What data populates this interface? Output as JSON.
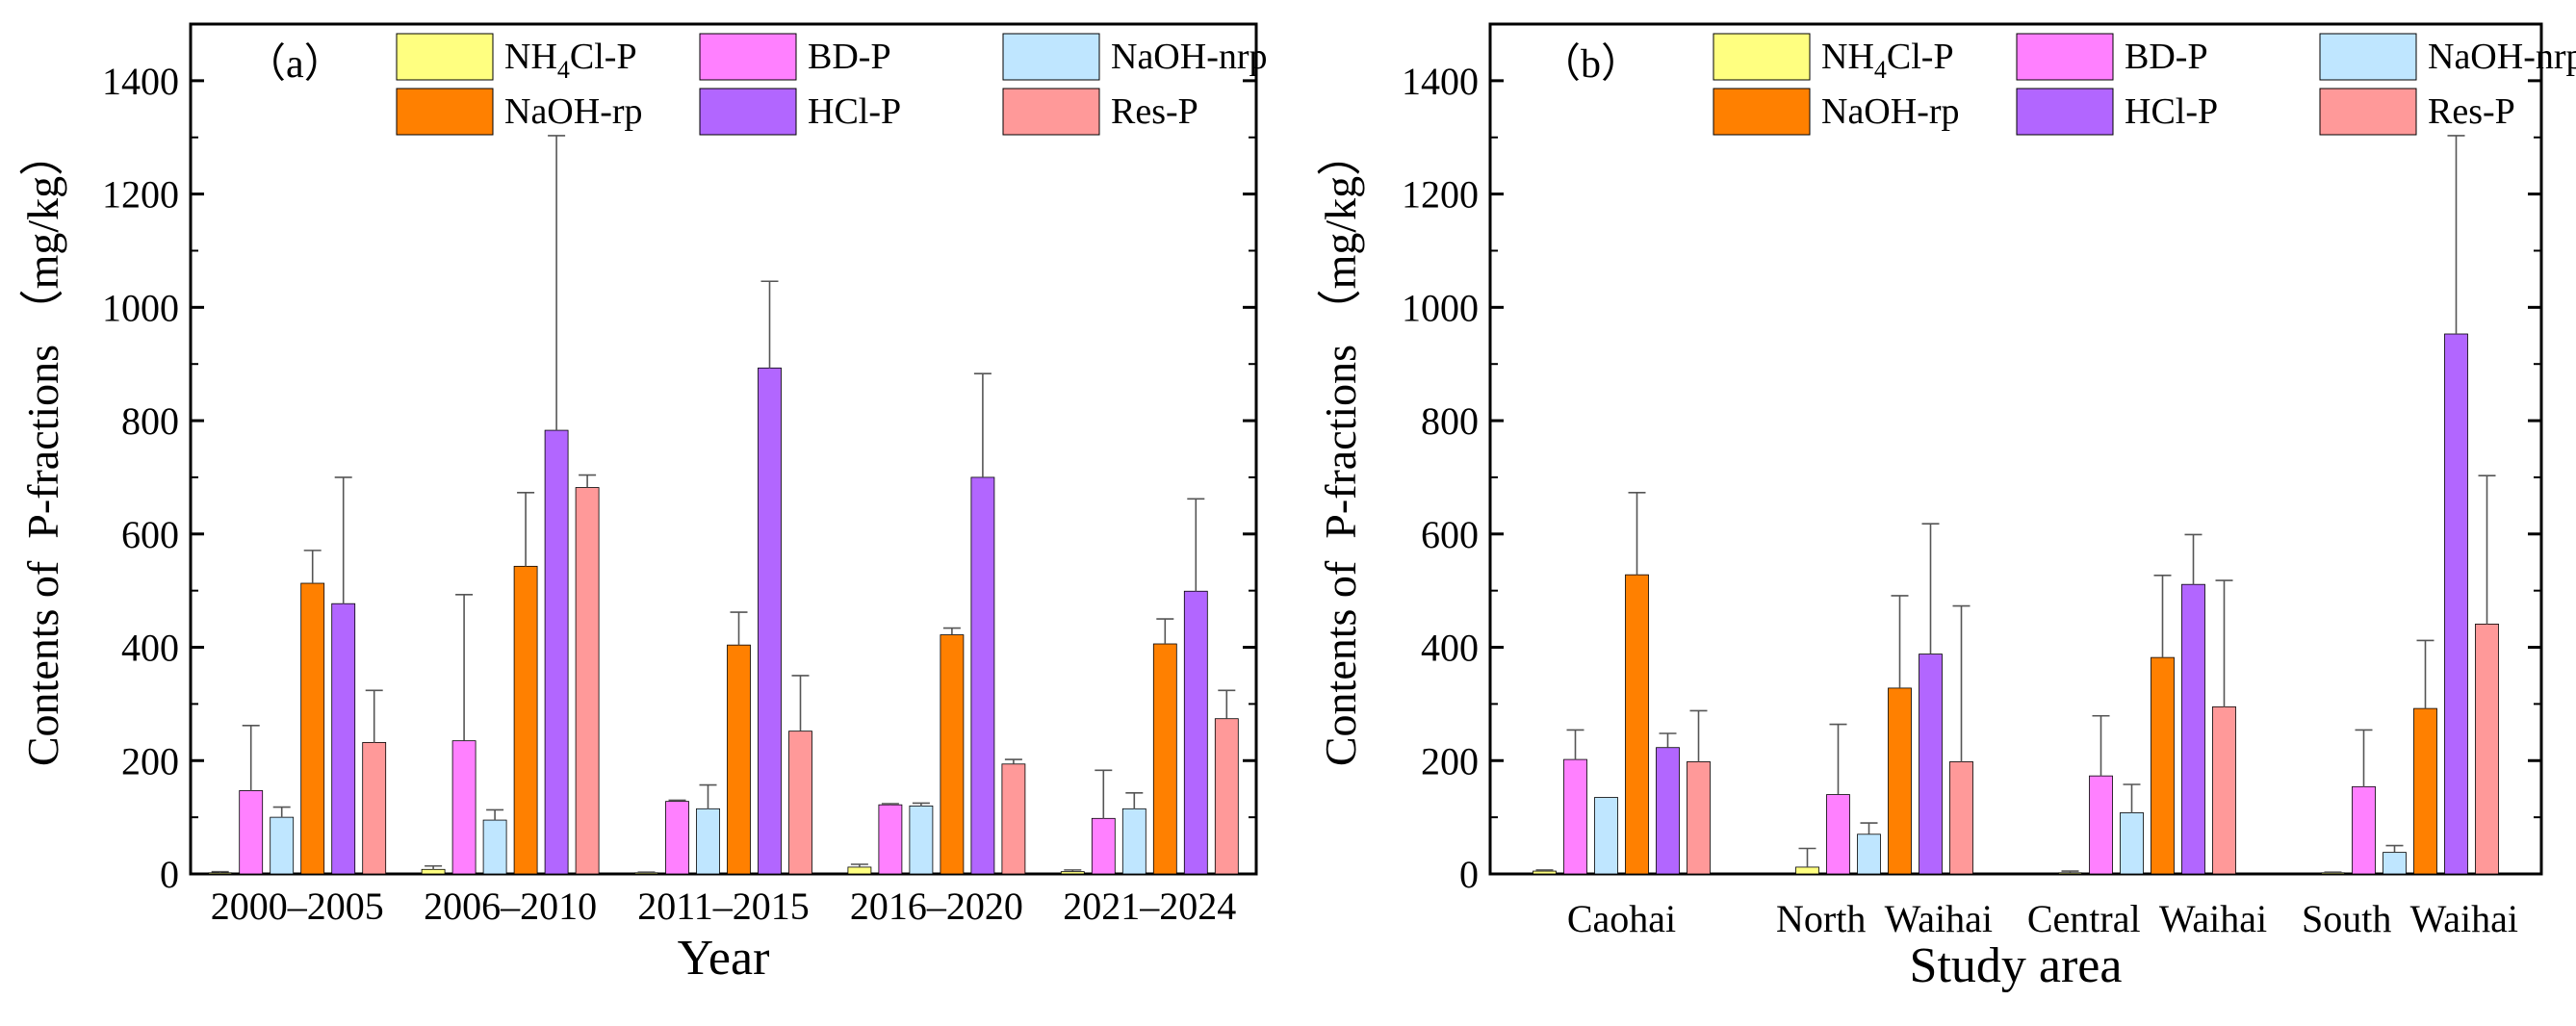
{
  "chart_data": [
    {
      "type": "bar",
      "panel_label": "（a）",
      "xlabel": "Year",
      "ylabel": "Contents of  P-fractions （mg/kg）",
      "ylim": [
        0,
        1500
      ],
      "yticks": [
        0,
        200,
        400,
        600,
        800,
        1000,
        1200,
        1400
      ],
      "legend": {
        "placement": "top",
        "columns": 3
      },
      "categories": [
        "2000–2005",
        "2006–2010",
        "2011–2015",
        "2016–2020",
        "2021–2024"
      ],
      "series": [
        {
          "name": "NH4Cl-P",
          "label_main": "NH",
          "label_sub": "4",
          "label_rest": "Cl-P",
          "color": "#FFFF80",
          "values": [
            2,
            8,
            2,
            12,
            4
          ],
          "errors": [
            2,
            6,
            1,
            5,
            3
          ]
        },
        {
          "name": "BD-P",
          "label_main": "BD-P",
          "color": "#FF80FF",
          "values": [
            147,
            235,
            128,
            122,
            98
          ],
          "errors": [
            115,
            258,
            2,
            2,
            85
          ]
        },
        {
          "name": "NaOH-nrp",
          "label_main": "NaOH-nrp",
          "color": "#BFE6FF",
          "values": [
            100,
            95,
            115,
            120,
            115
          ],
          "errors": [
            18,
            18,
            42,
            5,
            28
          ]
        },
        {
          "name": "NaOH-rp",
          "label_main": "NaOH-rp",
          "color": "#FF8000",
          "values": [
            513,
            543,
            404,
            422,
            406
          ],
          "errors": [
            58,
            130,
            58,
            12,
            44
          ]
        },
        {
          "name": "HCl-P",
          "label_main": "HCl-P",
          "color": "#B266FF",
          "values": [
            477,
            783,
            893,
            700,
            499
          ],
          "errors": [
            223,
            520,
            153,
            183,
            163
          ]
        },
        {
          "name": "Res-P",
          "label_main": "Res-P",
          "color": "#FF9999",
          "values": [
            232,
            682,
            252,
            194,
            274
          ],
          "errors": [
            92,
            22,
            98,
            8,
            50
          ]
        }
      ]
    },
    {
      "type": "bar",
      "panel_label": "（b）",
      "xlabel": "Study area",
      "ylabel": "Contents of  P-fractions （mg/kg）",
      "ylim": [
        0,
        1500
      ],
      "yticks": [
        0,
        200,
        400,
        600,
        800,
        1000,
        1200,
        1400
      ],
      "legend": {
        "placement": "top",
        "columns": 3
      },
      "categories": [
        "Caohai",
        "North  Waihai",
        "Central  Waihai",
        "South  Waihai"
      ],
      "series": [
        {
          "name": "NH4Cl-P",
          "label_main": "NH",
          "label_sub": "4",
          "label_rest": "Cl-P",
          "color": "#FFFF80",
          "values": [
            5,
            12,
            2,
            2
          ],
          "errors": [
            2,
            33,
            3,
            1
          ]
        },
        {
          "name": "BD-P",
          "label_main": "BD-P",
          "color": "#FF80FF",
          "values": [
            202,
            140,
            173,
            154
          ],
          "errors": [
            52,
            124,
            106,
            100
          ]
        },
        {
          "name": "NaOH-nrp",
          "label_main": "NaOH-nrp",
          "color": "#BFE6FF",
          "values": [
            135,
            70,
            108,
            38
          ],
          "errors": [
            0,
            20,
            50,
            12
          ]
        },
        {
          "name": "NaOH-rp",
          "label_main": "NaOH-rp",
          "color": "#FF8000",
          "values": [
            528,
            328,
            382,
            292
          ],
          "errors": [
            145,
            163,
            145,
            120
          ]
        },
        {
          "name": "HCl-P",
          "label_main": "HCl-P",
          "color": "#B266FF",
          "values": [
            223,
            388,
            511,
            953
          ],
          "errors": [
            25,
            230,
            88,
            350
          ]
        },
        {
          "name": "Res-P",
          "label_main": "Res-P",
          "color": "#FF9999",
          "values": [
            198,
            198,
            295,
            441
          ],
          "errors": [
            90,
            275,
            223,
            262
          ]
        }
      ]
    }
  ]
}
